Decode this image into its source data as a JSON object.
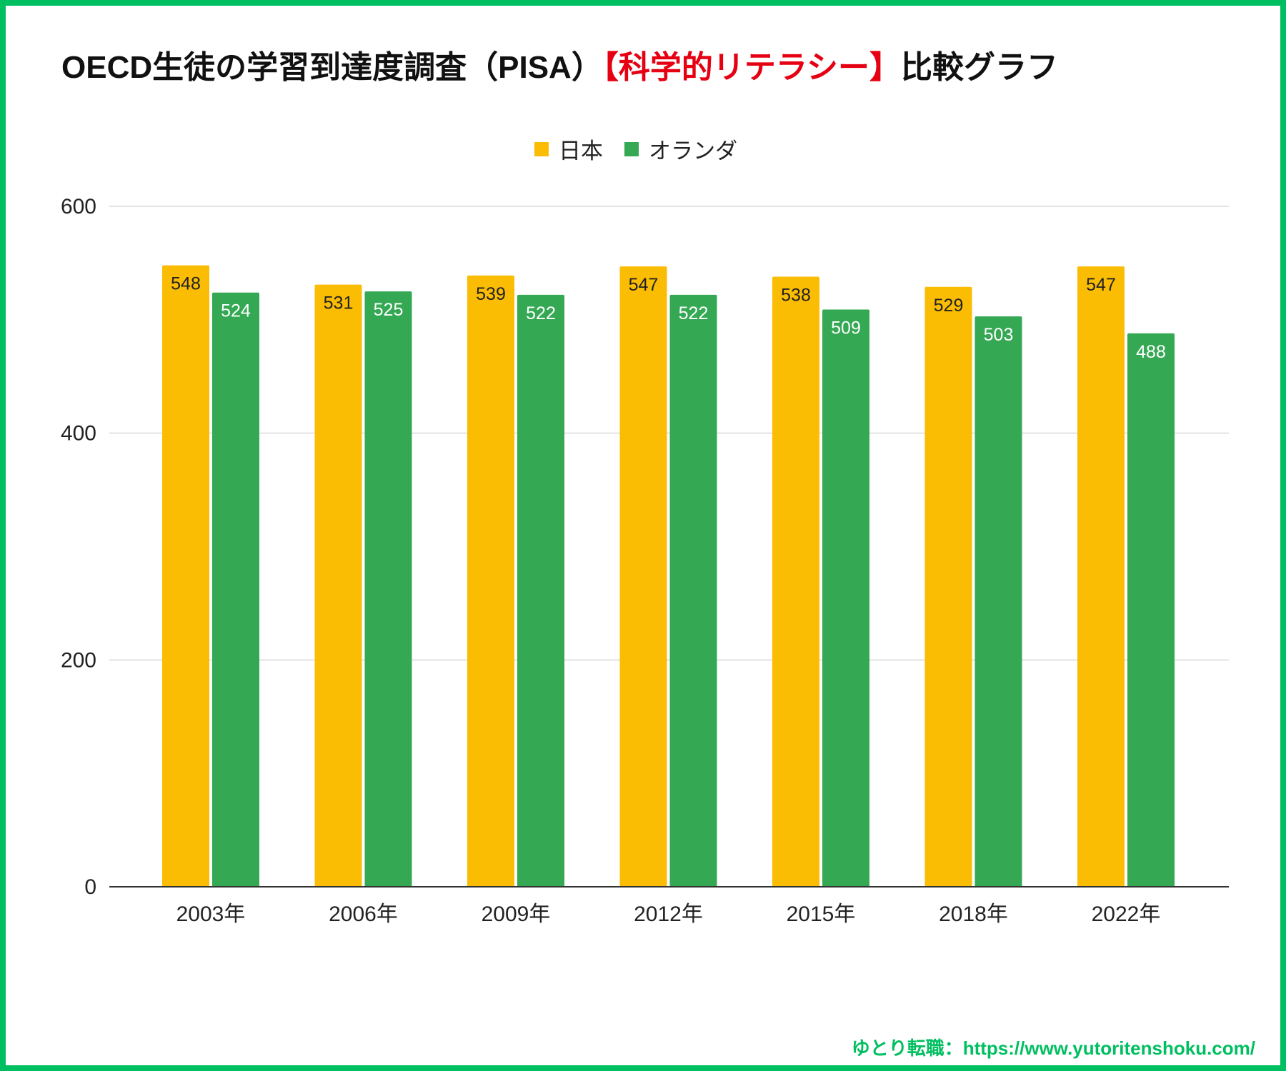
{
  "title": {
    "main": "OECD生徒の学習到達度調査（PISA）",
    "highlight": "【科学的リテラシー】",
    "suffix": "比較グラフ"
  },
  "footer": "ゆとり転職：https://www.yutoritenshoku.com/",
  "colors": {
    "japan": "#fbbc04",
    "netherlands": "#34a853",
    "accent": "#e50012",
    "brand": "#00bf60"
  },
  "chart_data": {
    "type": "bar",
    "title": "OECD生徒の学習到達度調査（PISA）【科学的リテラシー】比較グラフ",
    "categories": [
      "2003年",
      "2006年",
      "2009年",
      "2012年",
      "2015年",
      "2018年",
      "2022年"
    ],
    "series": [
      {
        "name": "日本",
        "values": [
          548,
          531,
          539,
          547,
          538,
          529,
          547
        ]
      },
      {
        "name": "オランダ",
        "values": [
          524,
          525,
          522,
          522,
          509,
          503,
          488
        ]
      }
    ],
    "yticks": [
      0,
      200,
      400,
      600
    ],
    "ylim": [
      0,
      600
    ],
    "grid": true,
    "legend": "top-center",
    "xlabel": "",
    "ylabel": ""
  }
}
